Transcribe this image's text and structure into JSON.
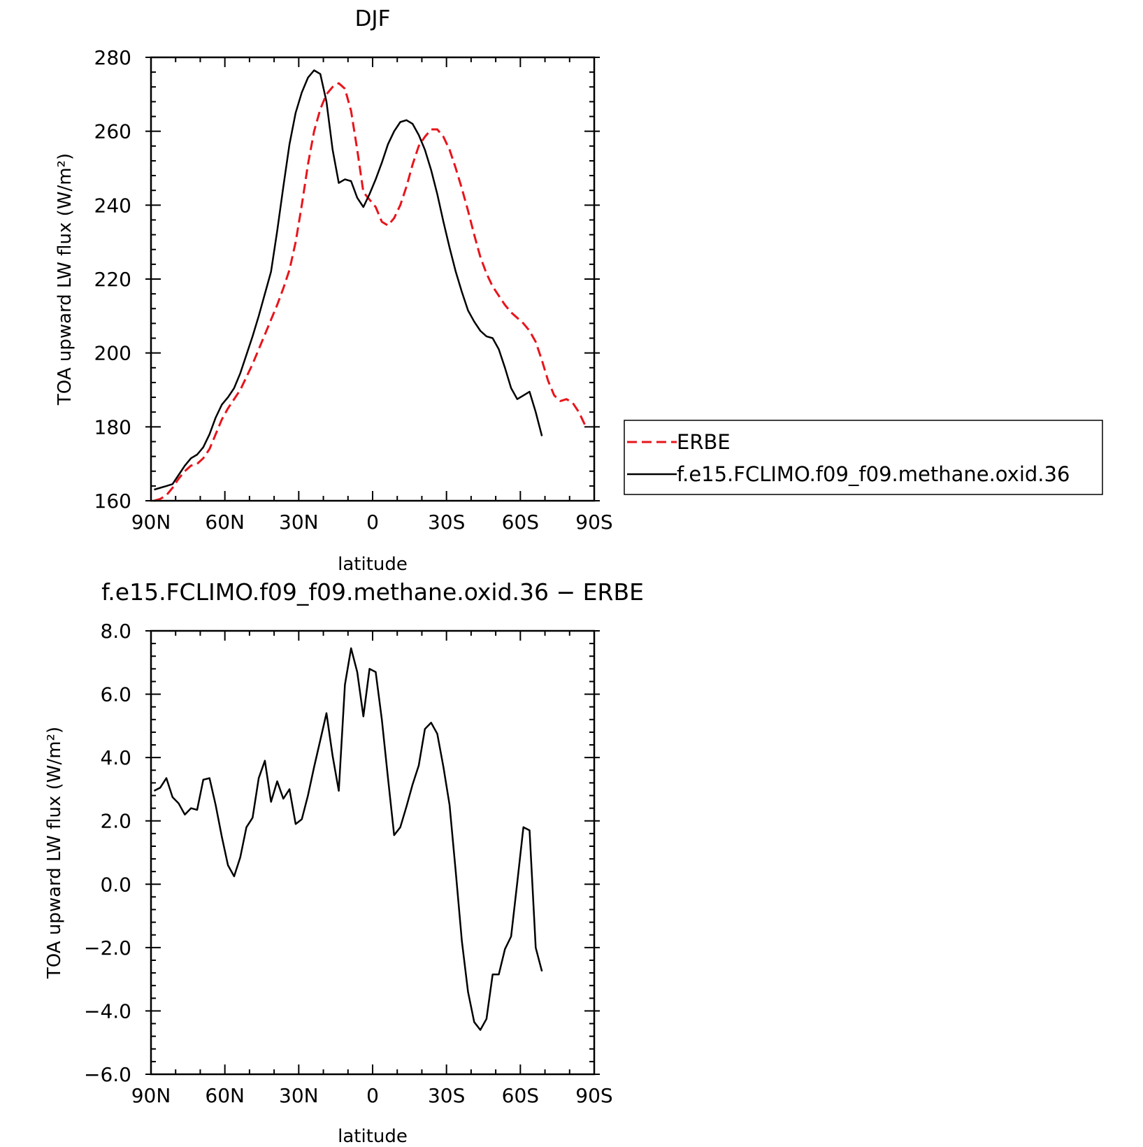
{
  "chart_data": [
    {
      "type": "line",
      "title": "DJF",
      "xlabel": "latitude",
      "ylabel": "TOA upward LW flux (W/m²)",
      "xlim": [
        -90,
        90
      ],
      "ylim": [
        160,
        280
      ],
      "x_direction": "90N on left, 90S on right (values are latitude in degrees, north positive)",
      "xticks": [
        {
          "value": 90,
          "label": "90N"
        },
        {
          "value": 60,
          "label": "60N"
        },
        {
          "value": 30,
          "label": "30N"
        },
        {
          "value": 0,
          "label": "0"
        },
        {
          "value": -30,
          "label": "30S"
        },
        {
          "value": -60,
          "label": "60S"
        },
        {
          "value": -90,
          "label": "90S"
        }
      ],
      "yticks": [
        {
          "value": 160,
          "label": "160"
        },
        {
          "value": 180,
          "label": "180"
        },
        {
          "value": 200,
          "label": "200"
        },
        {
          "value": 220,
          "label": "220"
        },
        {
          "value": 240,
          "label": "240"
        },
        {
          "value": 260,
          "label": "260"
        },
        {
          "value": 280,
          "label": "280"
        }
      ],
      "legend": {
        "placement": "right, outside plot",
        "entries": [
          {
            "label": "ERBE"
          },
          {
            "label": "f.e15.FCLIMO.f09_f09.methane.oxid.36"
          }
        ]
      },
      "series": [
        {
          "name": "ERBE",
          "color": "#e8141b",
          "dash": "dashed",
          "points": [
            [
              88.75,
              160.0
            ],
            [
              86.25,
              160.5
            ],
            [
              83.75,
              161.5
            ],
            [
              81.25,
              163.5
            ],
            [
              78.75,
              166.0
            ],
            [
              76.25,
              168.0
            ],
            [
              73.75,
              169.5
            ],
            [
              71.25,
              170.0
            ],
            [
              68.75,
              171.5
            ],
            [
              66.25,
              174.0
            ],
            [
              63.75,
              178.0
            ],
            [
              61.25,
              182.0
            ],
            [
              58.75,
              185.0
            ],
            [
              56.25,
              187.5
            ],
            [
              53.75,
              190.0
            ],
            [
              51.25,
              193.5
            ],
            [
              48.75,
              197.0
            ],
            [
              46.25,
              201.0
            ],
            [
              43.75,
              205.0
            ],
            [
              41.25,
              209.0
            ],
            [
              38.75,
              213.0
            ],
            [
              36.25,
              217.5
            ],
            [
              33.75,
              222.5
            ],
            [
              31.25,
              230.0
            ],
            [
              28.75,
              240.0
            ],
            [
              26.25,
              251.0
            ],
            [
              23.75,
              260.0
            ],
            [
              21.25,
              266.0
            ],
            [
              18.75,
              270.0
            ],
            [
              16.25,
              272.0
            ],
            [
              13.75,
              273.0
            ],
            [
              11.25,
              271.5
            ],
            [
              8.75,
              265.5
            ],
            [
              6.25,
              255.0
            ],
            [
              3.75,
              243.5
            ],
            [
              1.25,
              241.5
            ],
            [
              -1.25,
              239.5
            ],
            [
              -3.75,
              235.5
            ],
            [
              -6.25,
              234.5
            ],
            [
              -8.75,
              236.5
            ],
            [
              -11.25,
              240.0
            ],
            [
              -13.75,
              245.0
            ],
            [
              -16.25,
              251.0
            ],
            [
              -18.75,
              256.0
            ],
            [
              -21.25,
              258.5
            ],
            [
              -23.75,
              260.5
            ],
            [
              -26.25,
              260.5
            ],
            [
              -28.75,
              258.5
            ],
            [
              -31.25,
              255.0
            ],
            [
              -33.75,
              250.0
            ],
            [
              -36.25,
              244.5
            ],
            [
              -38.75,
              238.5
            ],
            [
              -41.25,
              232.0
            ],
            [
              -43.75,
              226.0
            ],
            [
              -46.25,
              221.5
            ],
            [
              -48.75,
              218.0
            ],
            [
              -51.25,
              215.5
            ],
            [
              -53.75,
              213.0
            ],
            [
              -56.25,
              211.0
            ],
            [
              -58.75,
              209.5
            ],
            [
              -61.25,
              208.0
            ],
            [
              -63.75,
              206.0
            ],
            [
              -66.25,
              203.0
            ],
            [
              -68.75,
              198.0
            ],
            [
              -71.25,
              192.5
            ],
            [
              -73.75,
              188.5
            ],
            [
              -76.25,
              187.0
            ],
            [
              -78.75,
              187.5
            ],
            [
              -81.25,
              186.5
            ],
            [
              -83.75,
              184.0
            ],
            [
              -86.25,
              180.5
            ]
          ]
        },
        {
          "name": "f.e15.FCLIMO.f09_f09.methane.oxid.36",
          "color": "#000000",
          "dash": "solid",
          "points": [
            [
              88.75,
              163.0
            ],
            [
              86.25,
              163.5
            ],
            [
              83.75,
              164.0
            ],
            [
              81.25,
              164.5
            ],
            [
              78.75,
              167.0
            ],
            [
              76.25,
              169.5
            ],
            [
              73.75,
              171.5
            ],
            [
              71.25,
              172.5
            ],
            [
              68.75,
              174.5
            ],
            [
              66.25,
              178.0
            ],
            [
              63.75,
              182.5
            ],
            [
              61.25,
              186.0
            ],
            [
              58.75,
              188.0
            ],
            [
              56.25,
              190.5
            ],
            [
              53.75,
              194.5
            ],
            [
              51.25,
              199.5
            ],
            [
              48.75,
              204.5
            ],
            [
              46.25,
              210.0
            ],
            [
              43.75,
              216.0
            ],
            [
              41.25,
              222.0
            ],
            [
              38.75,
              233.0
            ],
            [
              36.25,
              245.0
            ],
            [
              33.75,
              256.5
            ],
            [
              31.25,
              265.0
            ],
            [
              28.75,
              270.5
            ],
            [
              26.25,
              274.5
            ],
            [
              23.75,
              276.5
            ],
            [
              21.25,
              275.5
            ],
            [
              18.75,
              268.0
            ],
            [
              16.25,
              255.0
            ],
            [
              13.75,
              246.0
            ],
            [
              11.25,
              247.0
            ],
            [
              8.75,
              246.5
            ],
            [
              6.25,
              242.0
            ],
            [
              3.75,
              239.5
            ],
            [
              1.25,
              243.0
            ],
            [
              -1.25,
              247.0
            ],
            [
              -3.75,
              251.5
            ],
            [
              -6.25,
              256.5
            ],
            [
              -8.75,
              260.0
            ],
            [
              -11.25,
              262.5
            ],
            [
              -13.75,
              263.0
            ],
            [
              -16.25,
              262.0
            ],
            [
              -18.75,
              259.0
            ],
            [
              -21.25,
              255.0
            ],
            [
              -23.75,
              249.5
            ],
            [
              -26.25,
              243.0
            ],
            [
              -28.75,
              235.5
            ],
            [
              -31.25,
              228.5
            ],
            [
              -33.75,
              222.0
            ],
            [
              -36.25,
              216.5
            ],
            [
              -38.75,
              211.5
            ],
            [
              -41.25,
              208.5
            ],
            [
              -43.75,
              206.0
            ],
            [
              -46.25,
              204.5
            ],
            [
              -48.75,
              204.0
            ],
            [
              -51.25,
              201.0
            ],
            [
              -53.75,
              196.0
            ],
            [
              -56.25,
              190.5
            ],
            [
              -58.75,
              187.5
            ],
            [
              -61.25,
              188.5
            ],
            [
              -63.75,
              189.5
            ],
            [
              -66.25,
              184.0
            ],
            [
              -68.75,
              177.5
            ]
          ]
        }
      ]
    },
    {
      "type": "line",
      "title": "f.e15.FCLIMO.f09_f09.methane.oxid.36 − ERBE",
      "xlabel": "latitude",
      "ylabel": "TOA upward LW flux (W/m²)",
      "xlim": [
        -90,
        90
      ],
      "ylim": [
        -6.0,
        8.0
      ],
      "x_direction": "90N on left, 90S on right (values are latitude in degrees, north positive)",
      "xticks": [
        {
          "value": 90,
          "label": "90N"
        },
        {
          "value": 60,
          "label": "60N"
        },
        {
          "value": 30,
          "label": "30N"
        },
        {
          "value": 0,
          "label": "0"
        },
        {
          "value": -30,
          "label": "30S"
        },
        {
          "value": -60,
          "label": "60S"
        },
        {
          "value": -90,
          "label": "90S"
        }
      ],
      "yticks": [
        {
          "value": 8.0,
          "label": "8.0"
        },
        {
          "value": 6.0,
          "label": "6.0"
        },
        {
          "value": 4.0,
          "label": "4.0"
        },
        {
          "value": 2.0,
          "label": "2.0"
        },
        {
          "value": 0.0,
          "label": "0.0"
        },
        {
          "value": -2.0,
          "label": "−2.0"
        },
        {
          "value": -4.0,
          "label": "−4.0"
        },
        {
          "value": -6.0,
          "label": "−6.0"
        }
      ],
      "series": [
        {
          "color": "#000000",
          "dash": "solid",
          "points": [
            [
              88.75,
              2.95
            ],
            [
              86.25,
              3.05
            ],
            [
              83.75,
              3.35
            ],
            [
              81.25,
              2.75
            ],
            [
              78.75,
              2.55
            ],
            [
              76.25,
              2.2
            ],
            [
              73.75,
              2.4
            ],
            [
              71.25,
              2.35
            ],
            [
              68.75,
              3.3
            ],
            [
              66.25,
              3.35
            ],
            [
              63.75,
              2.5
            ],
            [
              61.25,
              1.5
            ],
            [
              58.75,
              0.6
            ],
            [
              56.25,
              0.25
            ],
            [
              53.75,
              0.85
            ],
            [
              51.25,
              1.8
            ],
            [
              48.75,
              2.1
            ],
            [
              46.25,
              3.35
            ],
            [
              43.75,
              3.9
            ],
            [
              41.25,
              2.6
            ],
            [
              38.75,
              3.25
            ],
            [
              36.25,
              2.7
            ],
            [
              33.75,
              3.0
            ],
            [
              31.25,
              1.9
            ],
            [
              28.75,
              2.05
            ],
            [
              26.25,
              2.8
            ],
            [
              23.75,
              3.7
            ],
            [
              21.25,
              4.55
            ],
            [
              18.75,
              5.4
            ],
            [
              16.25,
              4.05
            ],
            [
              13.75,
              2.95
            ],
            [
              11.25,
              6.3
            ],
            [
              8.75,
              7.45
            ],
            [
              6.25,
              6.7
            ],
            [
              3.75,
              5.3
            ],
            [
              1.25,
              6.8
            ],
            [
              -1.25,
              6.7
            ],
            [
              -3.75,
              5.2
            ],
            [
              -6.25,
              3.35
            ],
            [
              -8.75,
              1.55
            ],
            [
              -11.25,
              1.8
            ],
            [
              -13.75,
              2.45
            ],
            [
              -16.25,
              3.15
            ],
            [
              -18.75,
              3.75
            ],
            [
              -21.25,
              4.9
            ],
            [
              -23.75,
              5.1
            ],
            [
              -26.25,
              4.75
            ],
            [
              -28.75,
              3.7
            ],
            [
              -31.25,
              2.5
            ],
            [
              -33.75,
              0.4
            ],
            [
              -36.25,
              -1.8
            ],
            [
              -38.75,
              -3.4
            ],
            [
              -41.25,
              -4.35
            ],
            [
              -43.75,
              -4.6
            ],
            [
              -46.25,
              -4.25
            ],
            [
              -48.75,
              -2.85
            ],
            [
              -51.25,
              -2.85
            ],
            [
              -53.75,
              -2.05
            ],
            [
              -56.25,
              -1.65
            ],
            [
              -58.75,
              0.05
            ],
            [
              -61.25,
              1.8
            ],
            [
              -63.75,
              1.7
            ],
            [
              -66.25,
              -2.0
            ],
            [
              -68.75,
              -2.75
            ]
          ]
        }
      ]
    }
  ]
}
